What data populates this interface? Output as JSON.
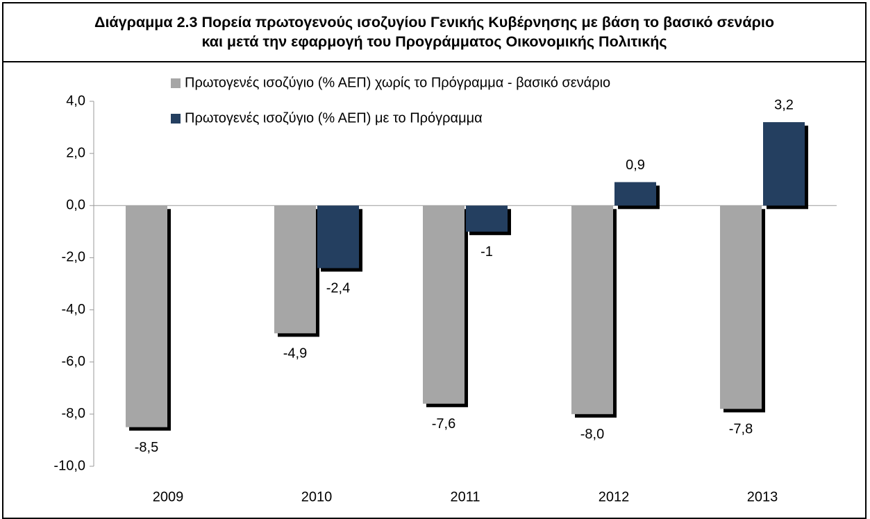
{
  "chart_data": {
    "type": "bar",
    "title": [
      "Διάγραμμα 2.3  Πορεία πρωτογενούς ισοζυγίου Γενικής Κυβέρνησης με βάση το βασικό σενάριο",
      "και μετά την εφαρμογή του Προγράμματος Οικονομικής Πολιτικής"
    ],
    "categories": [
      "2009",
      "2010",
      "2011",
      "2012",
      "2013"
    ],
    "series": [
      {
        "name": "Πρωτογενές ισοζύγιο (% ΑΕΠ) χωρίς το Πρόγραμμα - βασικό σενάριο",
        "color": "#a6a6a6",
        "values": [
          -8.5,
          -4.9,
          -7.6,
          -8.0,
          -7.8
        ],
        "value_labels": [
          "-8,5",
          "-4,9",
          "-7,6",
          "-8,0",
          "-7,8"
        ]
      },
      {
        "name": "Πρωτογενές ισοζύγιο (% ΑΕΠ) με το Πρόγραμμα",
        "color": "#243f60",
        "values": [
          null,
          -2.4,
          -1,
          0.9,
          3.2
        ],
        "value_labels": [
          null,
          "-2,4",
          "-1",
          "0,9",
          "3,2"
        ]
      }
    ],
    "ylim": [
      -10,
      4
    ],
    "yticks": [
      {
        "value": -10,
        "label": "-10,0"
      },
      {
        "value": -8,
        "label": "-8,0"
      },
      {
        "value": -6,
        "label": "-6,0"
      },
      {
        "value": -4,
        "label": "-4,0"
      },
      {
        "value": -2,
        "label": "-2,0"
      },
      {
        "value": 0,
        "label": "0,0"
      },
      {
        "value": 2,
        "label": "2,0"
      },
      {
        "value": 4,
        "label": "4,0"
      }
    ],
    "legend": "top"
  }
}
